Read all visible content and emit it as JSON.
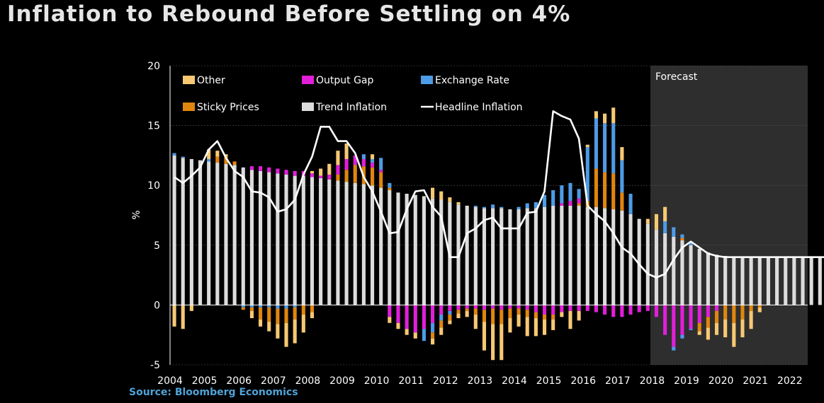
{
  "title": "Inflation to Rebound Before Settling on 4%",
  "source": "Source: Bloomberg Economics",
  "chart_data": {
    "type": "bar",
    "stacked": true,
    "ylabel": "%",
    "ylim": [
      -5,
      20
    ],
    "yticks": [
      -5,
      0,
      5,
      10,
      15,
      20
    ],
    "xticks": [
      "2004",
      "2005",
      "2006",
      "2007",
      "2008",
      "2009",
      "2010",
      "2011",
      "2012",
      "2013",
      "2014",
      "2015",
      "2016",
      "2017",
      "2018",
      "2019",
      "2020",
      "2021",
      "2022"
    ],
    "forecast_label": "Forecast",
    "forecast_start_index": 57,
    "grid": "horizontal",
    "colors": {
      "Other": "#f7c873",
      "Output Gap": "#e11fd9",
      "Exchange Rate": "#4e9be6",
      "Sticky Prices": "#e0860e",
      "Trend Inflation": "#dcdcdc",
      "Headline Inflation": "#ffffff",
      "forecast_bg": "#2e2e2e"
    },
    "legend": [
      "Other",
      "Output Gap",
      "Exchange Rate",
      "Sticky Prices",
      "Trend Inflation",
      "Headline Inflation"
    ],
    "series": [
      {
        "name": "Trend Inflation",
        "values": [
          12.5,
          12.3,
          12.2,
          12.1,
          12.0,
          11.9,
          11.8,
          11.7,
          11.5,
          11.3,
          11.2,
          11.1,
          11.0,
          10.9,
          10.8,
          10.8,
          10.7,
          10.6,
          10.5,
          10.4,
          10.3,
          10.2,
          10.1,
          10.0,
          9.8,
          9.6,
          9.4,
          9.3,
          9.2,
          9.1,
          8.9,
          8.8,
          8.6,
          8.4,
          8.3,
          8.2,
          8.1,
          8.1,
          8.1,
          8.0,
          8.0,
          8.1,
          8.1,
          8.2,
          8.3,
          8.3,
          8.3,
          8.3,
          8.2,
          8.2,
          8.1,
          8.0,
          7.9,
          7.6,
          7.2,
          6.8,
          6.3,
          6.0,
          5.7,
          5.4,
          5.0,
          4.7,
          4.4,
          4.2,
          4.1,
          4.0,
          4.0,
          4.0,
          4.0,
          4.0,
          4.0,
          4.0,
          4.0,
          4.0,
          4.0,
          4.0,
          4.0
        ]
      },
      {
        "name": "Sticky Prices",
        "values": [
          0,
          0,
          0,
          0,
          0,
          0.5,
          0.6,
          0.3,
          0,
          0,
          0,
          0,
          0,
          0,
          0,
          0,
          0,
          0,
          0,
          0.5,
          1,
          1.5,
          1.5,
          1.5,
          1.3,
          0.2,
          0,
          0,
          0,
          0,
          0,
          0,
          0,
          0,
          0,
          0,
          0,
          0,
          0,
          0,
          0,
          0,
          0,
          0,
          0,
          0,
          0,
          0.2,
          0.5,
          3.2,
          3.0,
          3.0,
          1.5,
          0,
          0,
          0,
          0,
          0,
          0,
          0.2,
          0,
          0,
          0,
          0,
          0,
          0,
          0,
          0,
          0,
          0,
          0,
          0,
          0,
          0,
          0,
          0,
          0
        ]
      },
      {
        "name": "Output Gap",
        "values": [
          0,
          0,
          0,
          0,
          0,
          0,
          0,
          0,
          0,
          0.3,
          0.4,
          0.4,
          0.4,
          0.4,
          0.4,
          0.4,
          0.3,
          0.2,
          0.4,
          0.8,
          0.9,
          0.8,
          0.6,
          0.4,
          0.2,
          0,
          0,
          0,
          0,
          0,
          0,
          0,
          0,
          0,
          0,
          0,
          0,
          0,
          0,
          0,
          0,
          0,
          0,
          0,
          0,
          0.2,
          0.4,
          0.4,
          0,
          0,
          0,
          0,
          0,
          0,
          0,
          0,
          0,
          0,
          0,
          0,
          0,
          0,
          0,
          0,
          0,
          0,
          0,
          0,
          0,
          0,
          0,
          0,
          0,
          0,
          0,
          0,
          0
        ]
      },
      {
        "name": "Exchange Rate",
        "values": [
          0.2,
          0.1,
          0,
          0,
          0.2,
          0,
          0,
          0,
          0,
          0,
          0,
          0,
          0,
          0,
          0,
          0,
          0,
          0,
          0,
          0,
          0,
          0,
          0.4,
          0.3,
          1.0,
          0.4,
          0,
          0,
          0,
          0,
          0,
          0,
          0,
          0,
          0,
          0.1,
          0.1,
          0.3,
          0.1,
          0,
          0.2,
          0.4,
          0.5,
          1.0,
          1.3,
          1.5,
          1.5,
          0.8,
          4.5,
          4.2,
          4.1,
          4.2,
          2.7,
          1.7,
          0,
          0,
          0,
          1.0,
          0.8,
          0.3,
          0.2,
          0,
          0,
          0,
          0,
          0,
          0,
          0,
          0,
          0,
          0,
          0,
          0,
          0,
          0,
          0,
          0
        ]
      },
      {
        "name": "Other",
        "values": [
          0,
          0,
          0,
          0,
          0.8,
          0.5,
          0.2,
          0,
          0,
          0,
          0,
          0,
          0,
          0,
          0,
          0,
          0.2,
          0.6,
          0.9,
          1.2,
          1.3,
          0,
          0,
          0.4,
          0,
          0,
          0,
          0,
          0,
          0,
          0.9,
          0.7,
          0.4,
          0.2,
          0,
          0,
          0,
          0,
          0,
          0,
          0,
          0,
          0,
          0,
          0,
          0,
          0,
          0,
          0.2,
          0.6,
          0.8,
          1.3,
          1.1,
          0,
          0,
          0.4,
          1.3,
          1.2,
          0,
          0,
          0,
          0,
          0,
          0,
          0,
          0,
          0,
          0,
          0,
          0,
          0,
          0,
          0,
          0,
          0,
          0,
          0,
          0
        ]
      },
      {
        "name": "Output Gap (negative)",
        "values": [
          0,
          0,
          0,
          0,
          0,
          0,
          0,
          0,
          0,
          0,
          0,
          0,
          0,
          0,
          0,
          0,
          0,
          0,
          0,
          0,
          0,
          0,
          0,
          0,
          0,
          -1.0,
          -1.5,
          -2.0,
          -2.3,
          -2.0,
          -1.5,
          -0.8,
          -0.5,
          -0.4,
          -0.3,
          -0.3,
          -0.4,
          -0.3,
          -0.4,
          -0.3,
          -0.3,
          -0.4,
          -0.6,
          -0.8,
          -0.8,
          -0.6,
          -0.5,
          -0.5,
          -0.5,
          -0.6,
          -0.8,
          -1.0,
          -1.0,
          -0.8,
          -0.6,
          -0.5,
          -1.0,
          -2.5,
          -3.5,
          -2.5,
          -2.0,
          -1.5,
          -1.0,
          -0.5,
          0,
          0,
          0,
          0,
          0,
          0,
          0,
          0,
          0,
          0,
          0,
          0,
          0
        ]
      },
      {
        "name": "Exchange Rate (negative)",
        "values": [
          0,
          0,
          0,
          0,
          0,
          0,
          0,
          0,
          -0.2,
          -0.2,
          -0.2,
          -0.2,
          -0.3,
          -0.3,
          -0.2,
          0,
          0,
          0,
          0,
          0,
          0,
          0,
          0,
          0,
          0,
          0,
          0,
          0,
          0,
          -1.0,
          -0.8,
          -0.5,
          -0.3,
          0,
          0,
          0,
          0,
          0,
          0,
          0,
          0,
          0,
          0,
          0,
          0,
          0,
          0,
          0,
          0,
          0,
          0,
          0,
          0,
          0,
          0,
          0,
          0,
          0,
          -0.3,
          -0.3,
          -0.1,
          0,
          0,
          0,
          0,
          0,
          0,
          0,
          0,
          0,
          0,
          0,
          0,
          0,
          0,
          0,
          0
        ]
      },
      {
        "name": "Sticky Prices (negative)",
        "values": [
          0,
          0,
          0,
          0,
          0,
          0,
          0,
          0,
          -0.2,
          -0.3,
          -1.0,
          -1.2,
          -1.3,
          -1.2,
          -1.0,
          -0.8,
          -0.6,
          0,
          0,
          0,
          0,
          0,
          0,
          0,
          0,
          0,
          0,
          0,
          0,
          0,
          -0.5,
          -0.6,
          -0.5,
          -0.3,
          -0.2,
          -0.5,
          -1.0,
          -1.3,
          -1.2,
          -0.8,
          -0.5,
          -0.6,
          -0.5,
          -0.4,
          -0.4,
          0,
          0,
          0,
          0,
          0,
          0,
          0,
          0,
          0,
          0,
          0,
          0,
          0,
          0,
          0,
          0,
          -0.7,
          -0.9,
          -1.0,
          -1.2,
          -1.5,
          -1.2,
          -0.5,
          -0.2,
          0,
          0,
          0,
          0,
          0,
          0,
          0,
          0
        ]
      },
      {
        "name": "Other (negative)",
        "values": [
          -1.8,
          -2.0,
          -0.5,
          0,
          0,
          0,
          0,
          0,
          0,
          -0.6,
          -0.6,
          -0.8,
          -1.2,
          -2.0,
          -2.0,
          -1.5,
          -0.5,
          0,
          0,
          0,
          0,
          0,
          0,
          0,
          0,
          -0.5,
          -0.5,
          -0.5,
          -0.5,
          0,
          -0.5,
          -0.6,
          -0.3,
          -0.4,
          -0.5,
          -1.2,
          -2.4,
          -3.0,
          -3.0,
          -1.2,
          -1.0,
          -1.6,
          -1.5,
          -1.3,
          -0.9,
          -0.4,
          -1.5,
          -0.8,
          0,
          0,
          0,
          0,
          0,
          0,
          0,
          0,
          0,
          0,
          0,
          0,
          0,
          -0.3,
          -1.0,
          -1.0,
          -1.5,
          -2.0,
          -1.5,
          -1.5,
          -0.4,
          0,
          0,
          0,
          0,
          0,
          0,
          0,
          0,
          0
        ]
      },
      {
        "name": "Headline Inflation",
        "type": "line",
        "values": [
          10.7,
          10.2,
          10.8,
          11.5,
          13.0,
          13.7,
          12.3,
          11.2,
          10.7,
          9.5,
          9.4,
          9.0,
          7.8,
          8.0,
          8.8,
          10.9,
          12.4,
          14.9,
          14.9,
          13.7,
          13.7,
          12.7,
          10.7,
          9.5,
          7.8,
          6.0,
          6.1,
          8.0,
          9.5,
          9.6,
          8.2,
          7.4,
          4.0,
          4.0,
          6.0,
          6.4,
          7.1,
          7.3,
          6.4,
          6.4,
          6.4,
          7.7,
          7.8,
          9.5,
          16.2,
          15.8,
          15.5,
          13.9,
          8.3,
          7.6,
          7.0,
          6.0,
          4.8,
          4.3,
          3.4,
          2.6,
          2.3,
          2.6,
          3.8,
          4.8,
          5.3,
          4.8,
          4.3,
          4.1,
          4.0,
          4.0,
          4.0,
          4.0,
          4.0,
          4.0,
          4.0,
          4.0,
          4.0,
          4.0,
          4.0,
          4.0,
          4.0
        ]
      }
    ]
  }
}
